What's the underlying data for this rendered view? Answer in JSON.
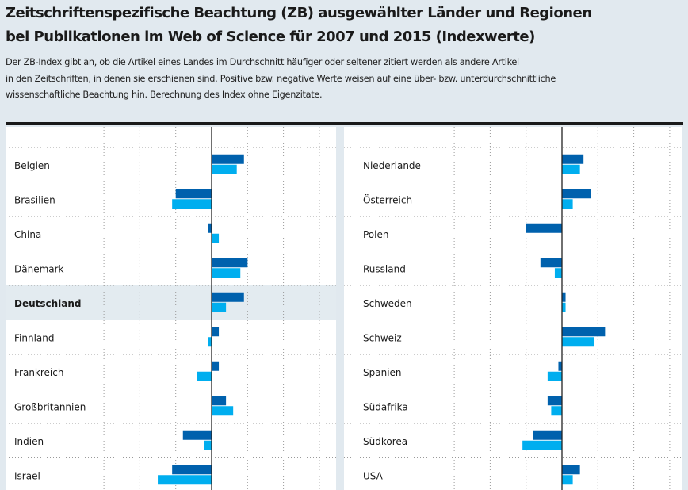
{
  "title_lines": [
    "Zeitschriftenspezifische Beachtung (ZB) ausgewählter Länder und Regionen",
    "bei Publikationen im Web of Science für 2007 und 2015 (Indexwerte)"
  ],
  "description_lines": [
    "Der ZB-Index gibt an, ob die Artikel eines Landes im Durchschnitt häufiger oder seltener zitiert werden als andere Artikel",
    "in den Zeitschriften, in denen sie erschienen sind. Positive bzw. negative Werte weisen auf eine über- bzw. unterdurchschnittliche",
    "wissenschaftliche Beachtung hin. Berechnung des Index ohne Eigenzitate."
  ],
  "colors": {
    "dark_series": "#0061ad",
    "light_series": "#00aeef",
    "highlight_row": "#e3ebf0"
  },
  "chart_data": [
    {
      "type": "bar",
      "orientation": "horizontal",
      "categories": [
        "Belgien",
        "Brasilien",
        "China",
        "Dänemark",
        "Deutschland",
        "Finnland",
        "Frankreich",
        "Großbritannien",
        "Indien",
        "Israel"
      ],
      "highlight": "Deutschland",
      "series": [
        {
          "values": [
            9,
            -10,
            -1,
            10,
            9,
            2,
            2,
            4,
            -8,
            -11
          ]
        },
        {
          "values": [
            7,
            -11,
            2,
            8,
            4,
            -1,
            -4,
            6,
            -2,
            -15
          ]
        }
      ],
      "xlim": [
        -30,
        35
      ],
      "grid": true
    },
    {
      "type": "bar",
      "orientation": "horizontal",
      "categories": [
        "Niederlande",
        "Österreich",
        "Polen",
        "Russland",
        "Schweden",
        "Schweiz",
        "Spanien",
        "Südafrika",
        "Südkorea",
        "USA"
      ],
      "series": [
        {
          "values": [
            6,
            8,
            -10,
            -6,
            1,
            12,
            -1,
            -4,
            -8,
            5
          ]
        },
        {
          "values": [
            5,
            3,
            0,
            -2,
            1,
            9,
            -4,
            -3,
            -11,
            3
          ]
        }
      ],
      "xlim": [
        -30,
        35
      ],
      "grid": true
    }
  ]
}
